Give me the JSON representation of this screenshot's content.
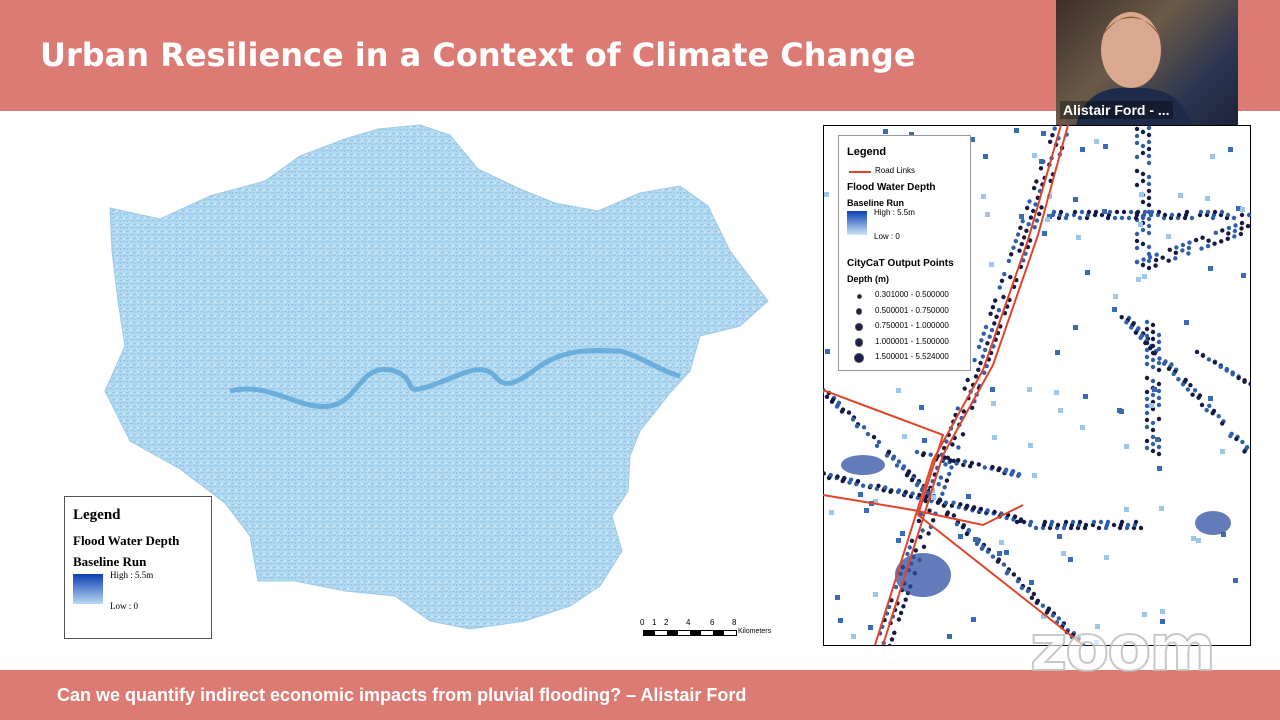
{
  "header": {
    "title": "Urban Resilience in a Context of Climate Change"
  },
  "video": {
    "participant_name": "Alistair Ford - ..."
  },
  "left_map": {
    "legend": {
      "title": "Legend",
      "layer": "Flood Water Depth",
      "run": "Baseline Run",
      "high": "High : 5.5m",
      "low": "Low : 0"
    },
    "scale_bar": {
      "ticks": [
        "0",
        "1",
        "2",
        "4",
        "6",
        "8"
      ],
      "unit": "Kilometers"
    }
  },
  "right_map": {
    "legend": {
      "title": "Legend",
      "road_links": "Road Links",
      "layer": "Flood Water Depth",
      "run": "Baseline Run",
      "high": "High : 5.5m",
      "low": "Low : 0",
      "points_title": "CityCaT Output Points",
      "depth_label": "Depth (m)",
      "classes": [
        "0.301000 - 0.500000",
        "0.500001 - 0.750000",
        "0.750001 - 1.000000",
        "1.000001 - 1.500000",
        "1.500001 - 5.524000"
      ]
    }
  },
  "footer": {
    "caption": "Can we quantify indirect economic impacts from pluvial flooding? – Alistair Ford"
  },
  "watermark": "zoom"
}
